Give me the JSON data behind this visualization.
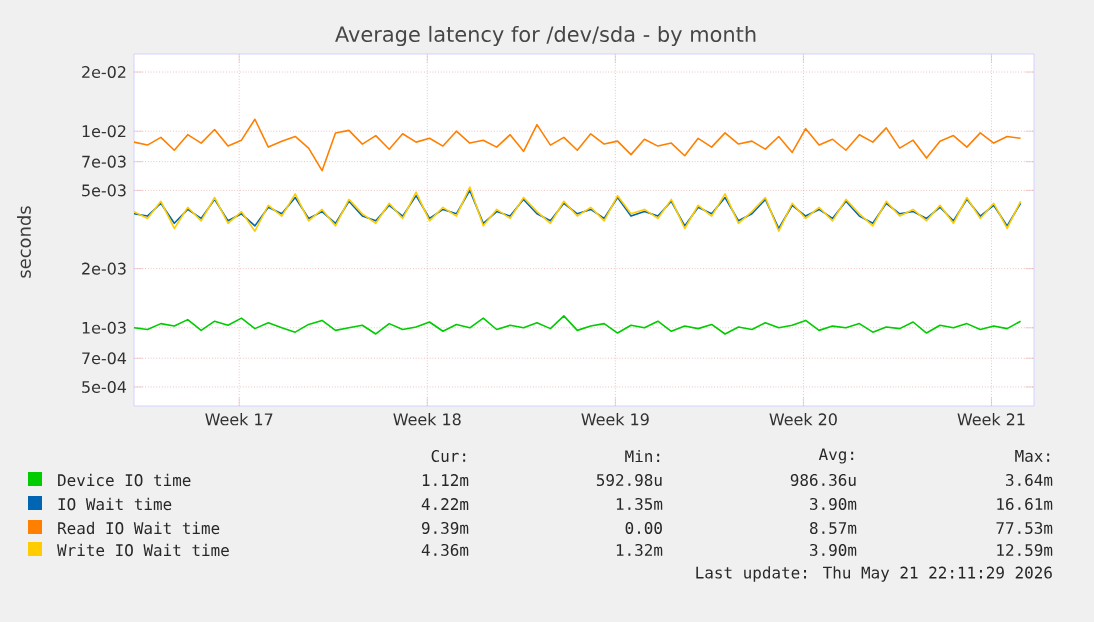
{
  "chart_data": {
    "type": "line",
    "title": "Average latency for /dev/sda - by month",
    "ylabel": "seconds",
    "x": [
      "2026-04-18T10:00",
      "2026-04-18T22:00",
      "2026-04-19T10:00",
      "2026-04-19T22:00",
      "2026-04-20T10:00",
      "2026-04-20T22:00",
      "2026-04-21T10:00",
      "2026-04-21T22:00",
      "2026-04-22T10:00",
      "2026-04-22T22:00",
      "2026-04-23T10:00",
      "2026-04-23T22:00",
      "2026-04-24T10:00",
      "2026-04-24T22:00",
      "2026-04-25T10:00",
      "2026-04-25T22:00",
      "2026-04-26T10:00",
      "2026-04-26T22:00",
      "2026-04-27T10:00",
      "2026-04-27T22:00",
      "2026-04-28T10:00",
      "2026-04-28T22:00",
      "2026-04-29T10:00",
      "2026-04-29T22:00",
      "2026-04-30T10:00",
      "2026-04-30T22:00",
      "2026-05-01T10:00",
      "2026-05-01T22:00",
      "2026-05-02T10:00",
      "2026-05-02T22:00",
      "2026-05-03T10:00",
      "2026-05-03T22:00",
      "2026-05-04T10:00",
      "2026-05-04T22:00",
      "2026-05-05T10:00",
      "2026-05-05T22:00",
      "2026-05-06T10:00",
      "2026-05-06T22:00",
      "2026-05-07T10:00",
      "2026-05-07T22:00",
      "2026-05-08T10:00",
      "2026-05-08T22:00",
      "2026-05-09T10:00",
      "2026-05-09T22:00",
      "2026-05-10T10:00",
      "2026-05-10T22:00",
      "2026-05-11T10:00",
      "2026-05-11T22:00",
      "2026-05-12T10:00",
      "2026-05-12T22:00",
      "2026-05-13T10:00",
      "2026-05-13T22:00",
      "2026-05-14T10:00",
      "2026-05-14T22:00",
      "2026-05-15T10:00",
      "2026-05-15T22:00",
      "2026-05-16T10:00",
      "2026-05-16T22:00",
      "2026-05-17T10:00",
      "2026-05-17T22:00",
      "2026-05-18T10:00",
      "2026-05-18T22:00",
      "2026-05-19T10:00",
      "2026-05-19T22:00",
      "2026-05-20T10:00",
      "2026-05-20T22:00",
      "2026-05-21T10:00"
    ],
    "series": [
      {
        "name": "Device IO time",
        "color": "#00cc00",
        "values": [
          0.001,
          0.00098,
          0.00105,
          0.00102,
          0.0011,
          0.00097,
          0.00108,
          0.00103,
          0.00112,
          0.00099,
          0.00106,
          0.001,
          0.00095,
          0.00104,
          0.00109,
          0.00097,
          0.001,
          0.00103,
          0.00093,
          0.00105,
          0.00098,
          0.00101,
          0.00107,
          0.00096,
          0.00104,
          0.001,
          0.00112,
          0.00098,
          0.00103,
          0.001,
          0.00106,
          0.00099,
          0.00115,
          0.00097,
          0.00102,
          0.00105,
          0.00094,
          0.00103,
          0.001,
          0.00108,
          0.00096,
          0.00102,
          0.00099,
          0.00104,
          0.00093,
          0.00101,
          0.00098,
          0.00106,
          0.001,
          0.00103,
          0.00109,
          0.00097,
          0.00102,
          0.001,
          0.00105,
          0.00095,
          0.00101,
          0.00099,
          0.00107,
          0.00094,
          0.00103,
          0.001,
          0.00105,
          0.00098,
          0.00102,
          0.00099,
          0.00108
        ]
      },
      {
        "name": "IO Wait time",
        "color": "#0066b3",
        "values": [
          0.0038,
          0.0037,
          0.0043,
          0.0034,
          0.004,
          0.0036,
          0.0045,
          0.0035,
          0.0038,
          0.0033,
          0.0041,
          0.0038,
          0.0046,
          0.0036,
          0.0039,
          0.0034,
          0.0044,
          0.0037,
          0.0035,
          0.0042,
          0.0037,
          0.0047,
          0.0036,
          0.004,
          0.0038,
          0.005,
          0.0034,
          0.0039,
          0.0037,
          0.0045,
          0.0038,
          0.0035,
          0.0043,
          0.0038,
          0.004,
          0.0036,
          0.0046,
          0.0037,
          0.0039,
          0.0037,
          0.0044,
          0.0033,
          0.0041,
          0.0038,
          0.0046,
          0.0035,
          0.0038,
          0.0045,
          0.0032,
          0.0042,
          0.0037,
          0.004,
          0.0036,
          0.0044,
          0.0037,
          0.0034,
          0.0043,
          0.0038,
          0.0039,
          0.0036,
          0.0041,
          0.0035,
          0.0045,
          0.0037,
          0.0042,
          0.0033,
          0.0043
        ]
      },
      {
        "name": "Read IO Wait time",
        "color": "#ff8000",
        "values": [
          0.0088,
          0.0085,
          0.0093,
          0.008,
          0.0096,
          0.0087,
          0.0102,
          0.0084,
          0.009,
          0.0115,
          0.0083,
          0.0089,
          0.0094,
          0.0082,
          0.0063,
          0.0098,
          0.0101,
          0.0086,
          0.0095,
          0.0081,
          0.0097,
          0.0088,
          0.0092,
          0.0084,
          0.01,
          0.0087,
          0.009,
          0.0083,
          0.0096,
          0.0079,
          0.0108,
          0.0085,
          0.0093,
          0.008,
          0.0097,
          0.0086,
          0.0089,
          0.0076,
          0.0091,
          0.0084,
          0.0087,
          0.0075,
          0.0092,
          0.0083,
          0.0098,
          0.0086,
          0.0089,
          0.0081,
          0.0094,
          0.0078,
          0.0103,
          0.0085,
          0.0091,
          0.008,
          0.0096,
          0.0088,
          0.0104,
          0.0082,
          0.009,
          0.0073,
          0.0089,
          0.0095,
          0.0083,
          0.0098,
          0.0087,
          0.0094,
          0.0092
        ]
      },
      {
        "name": "Write IO Wait time",
        "color": "#ffcc00",
        "values": [
          0.0039,
          0.0036,
          0.0044,
          0.0032,
          0.0041,
          0.0035,
          0.0046,
          0.0034,
          0.0039,
          0.0031,
          0.0042,
          0.0037,
          0.0048,
          0.0035,
          0.004,
          0.0033,
          0.0045,
          0.0038,
          0.0034,
          0.0043,
          0.0036,
          0.0049,
          0.0035,
          0.0041,
          0.0037,
          0.0052,
          0.0033,
          0.004,
          0.0036,
          0.0046,
          0.0039,
          0.0034,
          0.0044,
          0.0037,
          0.0041,
          0.0035,
          0.0047,
          0.0038,
          0.004,
          0.0036,
          0.0045,
          0.0032,
          0.0042,
          0.0037,
          0.0048,
          0.0034,
          0.0039,
          0.0046,
          0.0031,
          0.0043,
          0.0036,
          0.0041,
          0.0035,
          0.0045,
          0.0038,
          0.0033,
          0.0044,
          0.0037,
          0.004,
          0.0035,
          0.0042,
          0.0034,
          0.0046,
          0.0036,
          0.0043,
          0.0032,
          0.0044
        ]
      }
    ],
    "xlim": [
      "2026-04-18T10:00",
      "2026-05-21T22:00"
    ],
    "xticks": [
      {
        "value": "2026-04-22T08:00",
        "label": "Week 17"
      },
      {
        "value": "2026-04-29T08:00",
        "label": "Week 18"
      },
      {
        "value": "2026-05-06T08:00",
        "label": "Week 19"
      },
      {
        "value": "2026-05-13T08:00",
        "label": "Week 20"
      },
      {
        "value": "2026-05-20T08:00",
        "label": "Week 21"
      }
    ],
    "ylim": [
      0.0004,
      0.0247
    ],
    "log": "y",
    "yticks": [
      {
        "value": 0.0005,
        "label": "5e-04"
      },
      {
        "value": 0.0007,
        "label": "7e-04"
      },
      {
        "value": 0.001,
        "label": "1e-03"
      },
      {
        "value": 0.002,
        "label": "2e-03"
      },
      {
        "value": 0.005,
        "label": "5e-03"
      },
      {
        "value": 0.007,
        "label": "7e-03"
      },
      {
        "value": 0.01,
        "label": "1e-02"
      },
      {
        "value": 0.02,
        "label": "2e-02"
      }
    ],
    "grid": true,
    "legend": "bottom",
    "marker": "none",
    "line_style": "solid",
    "annotations": [
      "Cur:",
      "Min:",
      "Avg:",
      "Max:",
      "1.12m",
      "592.98u",
      "986.36u",
      "3.64m",
      "4.22m",
      "1.35m",
      "3.90m",
      "16.61m",
      "9.39m",
      "0.00",
      "8.57m",
      "77.53m",
      "4.36m",
      "1.32m",
      "3.90m",
      "12.59m",
      "Last update: Thu May 21 22:11:29 2026"
    ]
  }
}
